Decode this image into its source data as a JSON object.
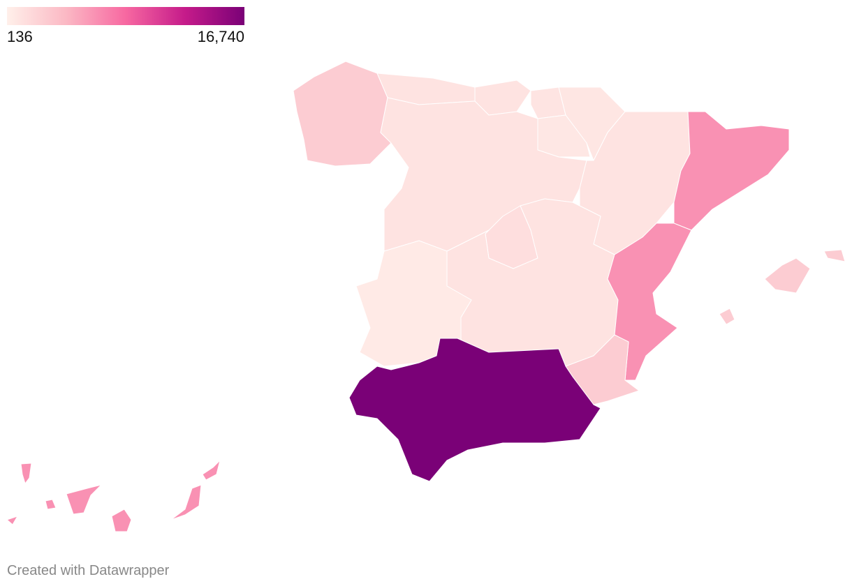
{
  "chart_data": {
    "type": "choropleth",
    "legend": {
      "min": 136,
      "max": {
        "value": 16740,
        "label": "16,740"
      }
    },
    "colors": [
      "#fff0ea",
      "#fbb8c4",
      "#f768a1",
      "#c51b8a",
      "#7a0177"
    ],
    "values": [
      2800,
      1100,
      1100,
      1000,
      900,
      800,
      1100,
      1100,
      6300,
      1500,
      1100,
      600,
      6300,
      2800,
      16740,
      2800,
      6300
    ],
    "footer": "Created with Datawrapper"
  }
}
